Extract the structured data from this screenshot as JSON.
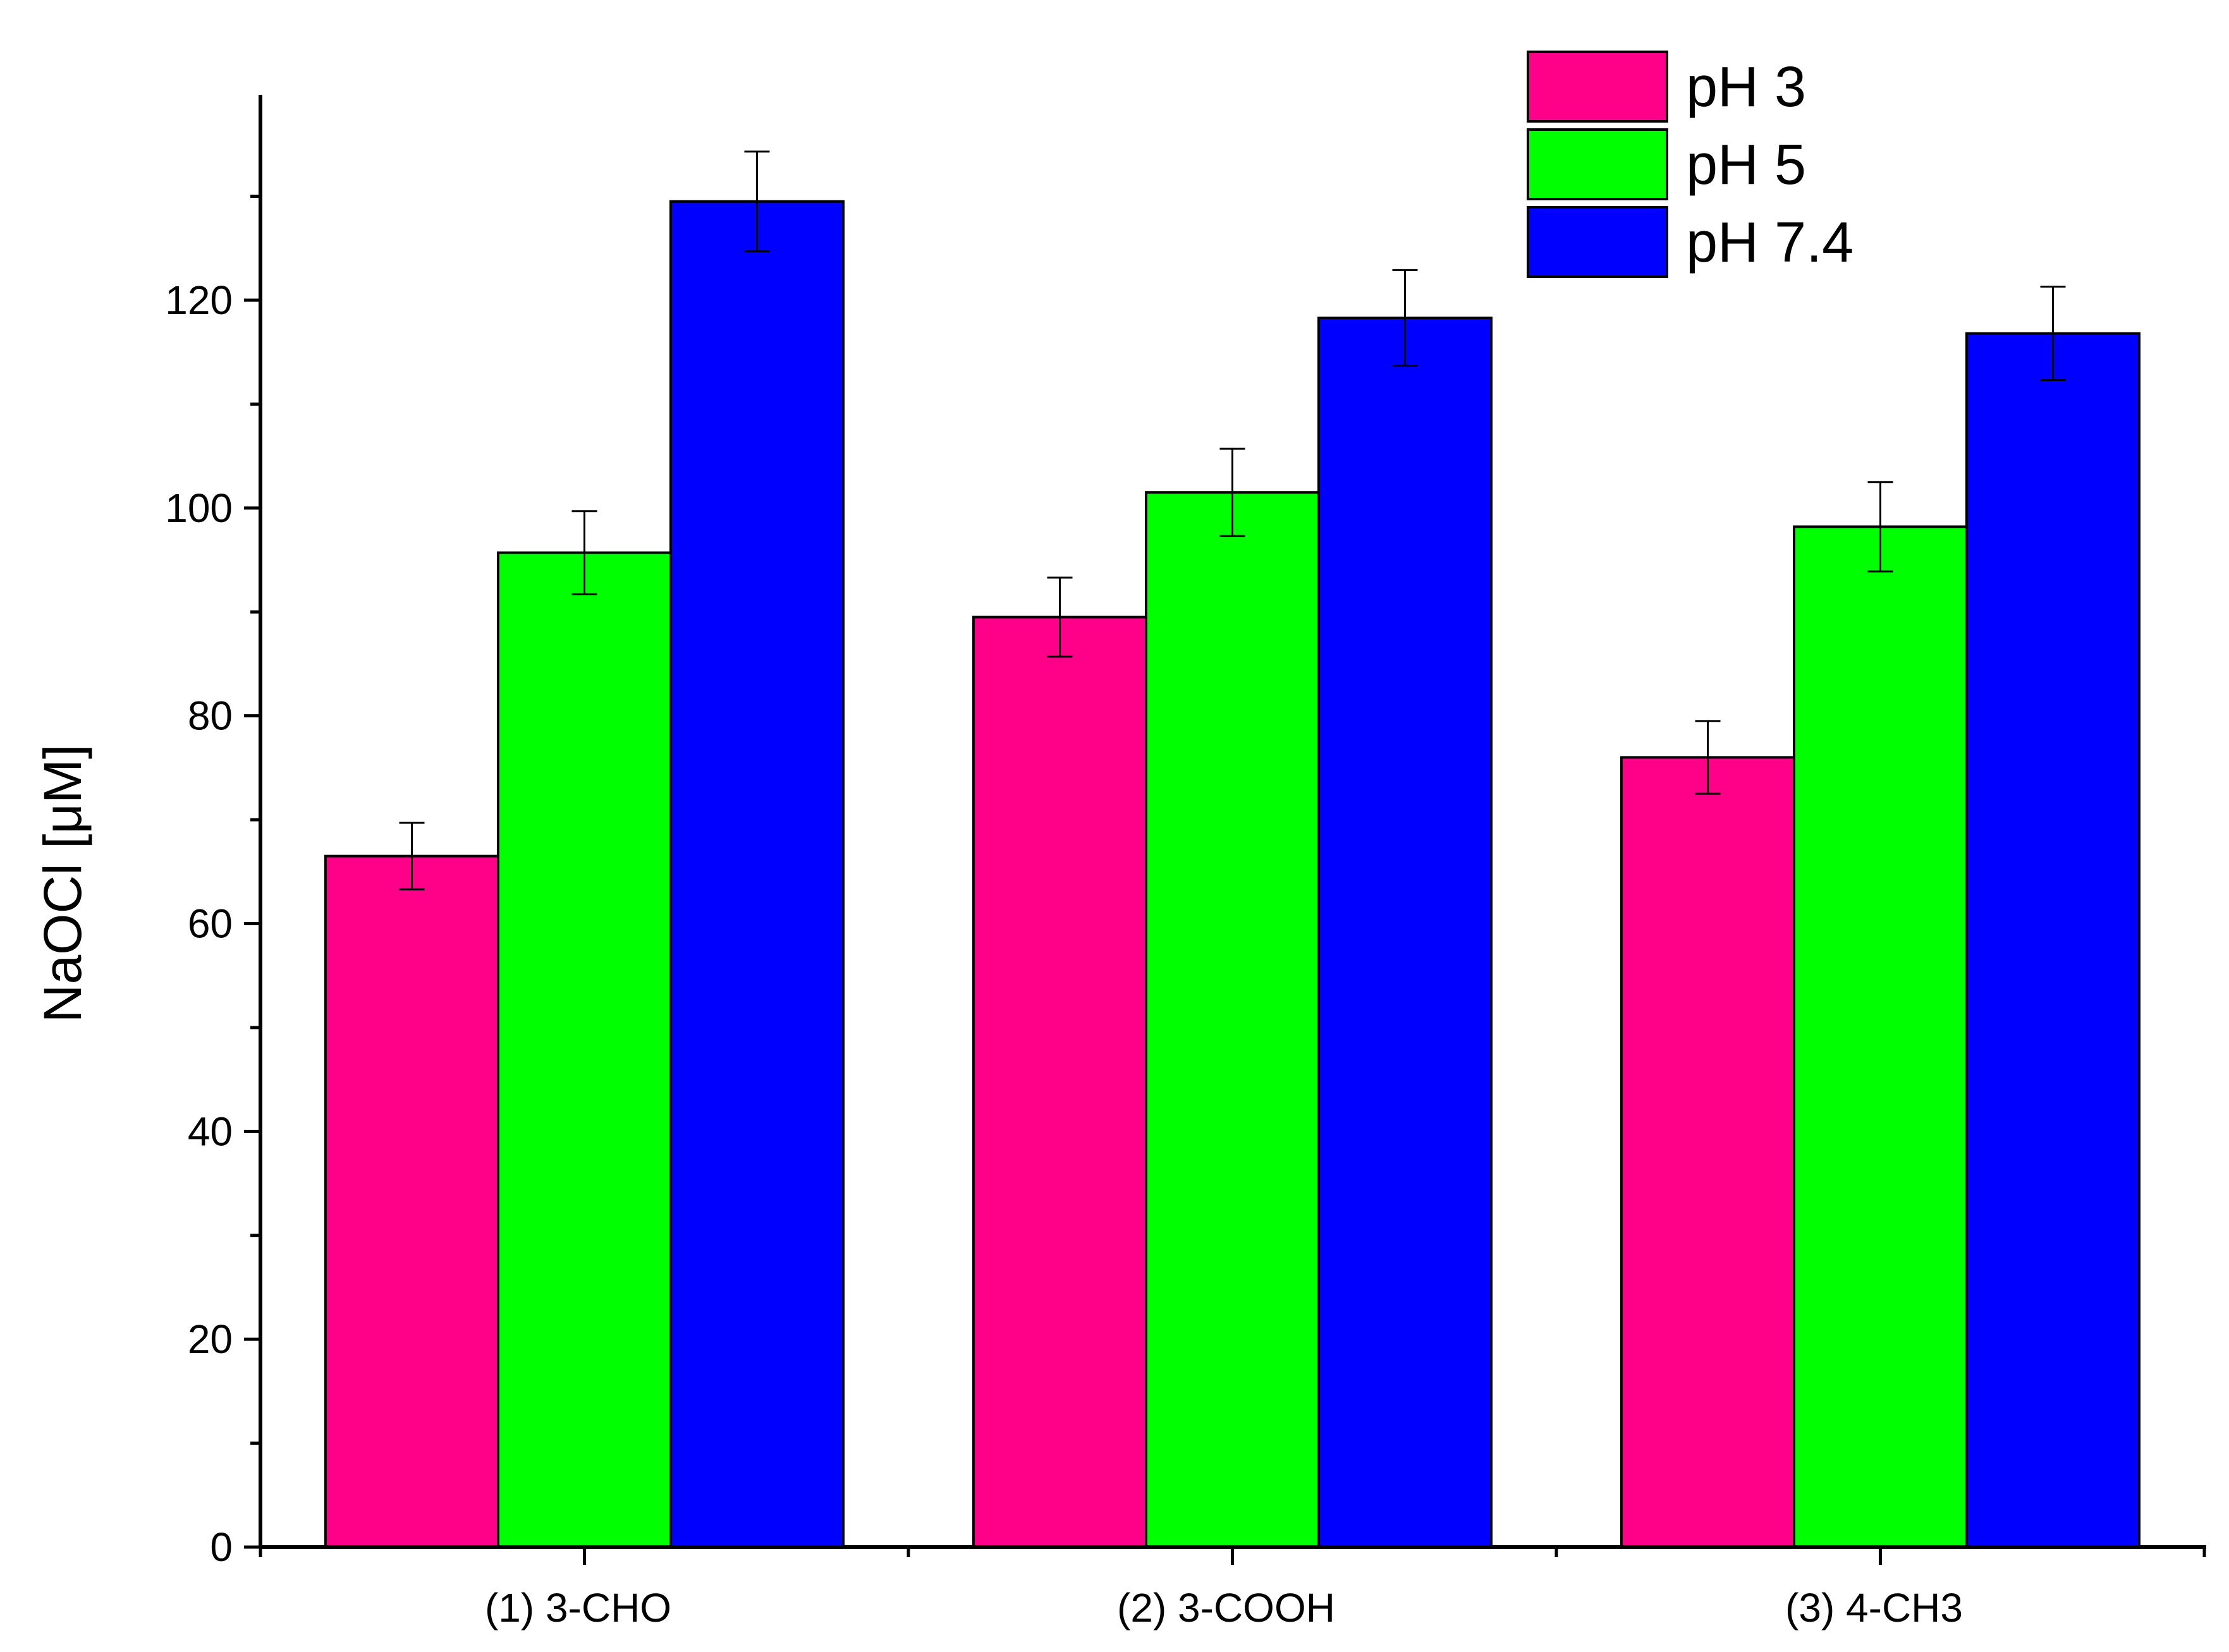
{
  "chart_data": {
    "type": "bar",
    "categories": [
      "(1) 3-CHO",
      "(2) 3-COOH",
      "(3) 4-CH3"
    ],
    "series": [
      {
        "name": "pH 3",
        "color": "#FF0088",
        "values": [
          66.5,
          89.5,
          76.0
        ],
        "errors": [
          3.2,
          3.8,
          3.5
        ]
      },
      {
        "name": "pH 5",
        "color": "#00FF00",
        "values": [
          95.7,
          101.5,
          98.2
        ],
        "errors": [
          4.0,
          4.2,
          4.3
        ]
      },
      {
        "name": "pH 7.4",
        "color": "#0000FF",
        "values": [
          129.5,
          118.3,
          116.8
        ],
        "errors": [
          4.8,
          4.6,
          4.5
        ]
      }
    ],
    "title": "",
    "xlabel": "",
    "ylabel": "NaOCl [μM]",
    "ylim": [
      0,
      138
    ],
    "yticks": [
      0,
      20,
      40,
      60,
      80,
      100,
      120
    ],
    "grid": false,
    "legend": "top-right"
  }
}
